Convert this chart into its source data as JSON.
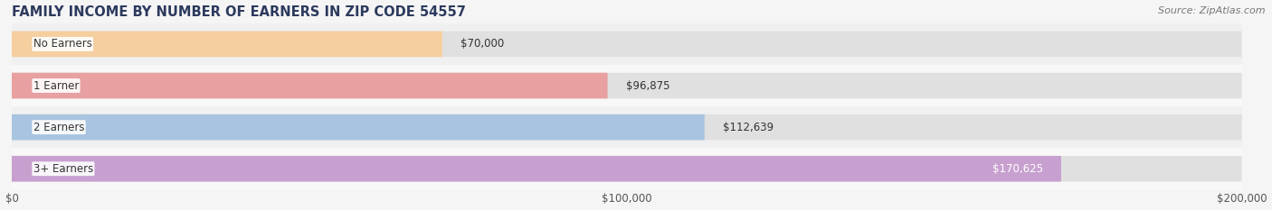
{
  "title": "FAMILY INCOME BY NUMBER OF EARNERS IN ZIP CODE 54557",
  "source": "Source: ZipAtlas.com",
  "categories": [
    "No Earners",
    "1 Earner",
    "2 Earners",
    "3+ Earners"
  ],
  "values": [
    70000,
    96875,
    112639,
    170625
  ],
  "labels": [
    "$70,000",
    "$96,875",
    "$112,639",
    "$170,625"
  ],
  "bar_colors": [
    "#f5cfa0",
    "#e8a0a0",
    "#a8c4e0",
    "#c8a0d0"
  ],
  "row_bg_colors": [
    "#f0f0f0",
    "#f8f8f8",
    "#f0f0f0",
    "#f8f8f8"
  ],
  "xlim": [
    0,
    200000
  ],
  "xticks": [
    0,
    100000,
    200000
  ],
  "xtick_labels": [
    "$0",
    "$100,000",
    "$200,000"
  ],
  "title_color": "#2d3a5e",
  "title_fontsize": 10.5,
  "source_color": "#777777",
  "source_fontsize": 8,
  "label_fontsize": 8.5,
  "category_fontsize": 8.5,
  "background_color": "#f5f5f5",
  "last_bar_label_color": "white",
  "value_label_color": "#333333"
}
